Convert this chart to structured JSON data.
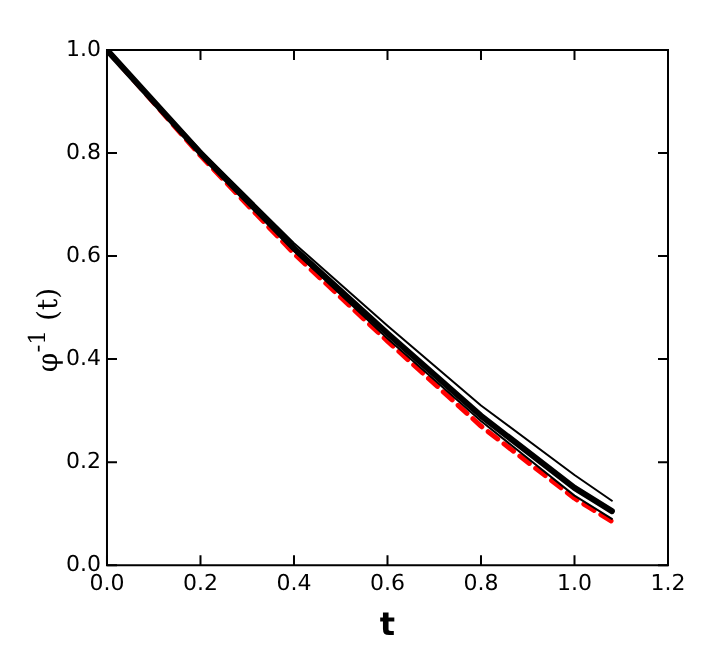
{
  "chart_data": {
    "type": "line",
    "xlabel": "t",
    "ylabel": "φ$^{-1}$ (t)",
    "x": [
      0,
      0.2,
      0.4,
      0.6,
      0.8,
      1.0,
      1.08
    ],
    "series": [
      {
        "color": "#000000",
        "line_style": "solid",
        "values": [
          1,
          0.805,
          0.625,
          0.465,
          0.31,
          0.175,
          0.125
        ]
      },
      {
        "color": "#000000",
        "line_style": "solid",
        "values": [
          1,
          0.8,
          0.615,
          0.45,
          0.29,
          0.15,
          0.105
        ]
      },
      {
        "color": "#000000",
        "line_style": "solid",
        "values": [
          1,
          0.8,
          0.61,
          0.44,
          0.28,
          0.135,
          0.09
        ]
      },
      {
        "color": "#ff0000",
        "line_style": "dashed",
        "values": [
          1,
          0.795,
          0.605,
          0.435,
          0.27,
          0.13,
          0.085
        ]
      }
    ],
    "xlim": [
      0,
      1.2
    ],
    "ylim": [
      0,
      1
    ],
    "xticks": [
      {
        "value": 0,
        "label": "0.0"
      },
      {
        "value": 0.2,
        "label": "0.2"
      },
      {
        "value": 0.4,
        "label": "0.4"
      },
      {
        "value": 0.6,
        "label": "0.6"
      },
      {
        "value": 0.8,
        "label": "0.8"
      },
      {
        "value": 1.0,
        "label": "1.0"
      },
      {
        "value": 1.2,
        "label": "1.2"
      }
    ],
    "yticks": [
      {
        "value": 0,
        "label": "0.0"
      },
      {
        "value": 0.2,
        "label": "0.2"
      },
      {
        "value": 0.4,
        "label": "0.4"
      },
      {
        "value": 0.6,
        "label": "0.6"
      },
      {
        "value": 0.8,
        "label": "0.8"
      },
      {
        "value": 1.0,
        "label": "1.0"
      }
    ],
    "grid": false,
    "legend": false,
    "marker": "none"
  }
}
